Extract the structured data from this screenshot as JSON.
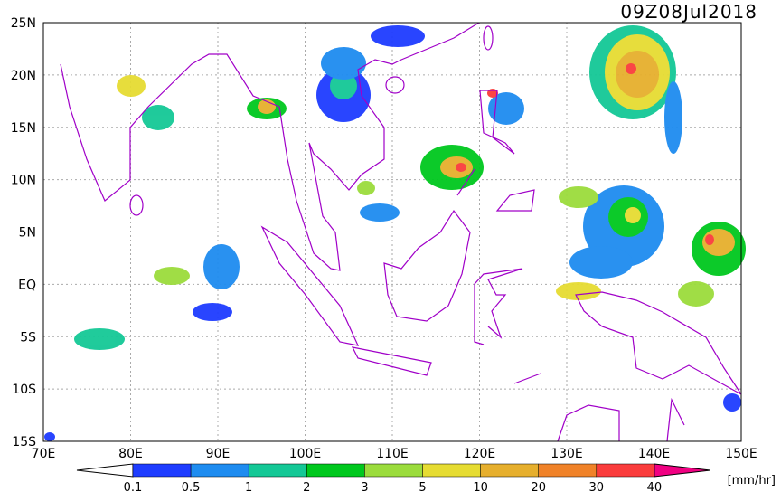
{
  "title": "09Z08Jul2018",
  "lat_labels": [
    "25N",
    "20N",
    "15N",
    "10N",
    "5N",
    "EQ",
    "5S",
    "10S",
    "15S"
  ],
  "lon_labels": [
    "70E",
    "80E",
    "90E",
    "100E",
    "110E",
    "120E",
    "130E",
    "140E",
    "150E"
  ],
  "colorbar": {
    "levels": [
      "0.1",
      "0.5",
      "1",
      "2",
      "3",
      "5",
      "10",
      "20",
      "30",
      "40"
    ],
    "below_color": "#ffffff",
    "colors": [
      "#1e3cff",
      "#1e8cf0",
      "#14c896",
      "#00c81e",
      "#9bdc3c",
      "#e6dc32",
      "#e6af2d",
      "#f08228",
      "#fa3c3c"
    ],
    "above_color": "#f00082",
    "unit": "[mm/hr]"
  },
  "coast_color": "#a000c8"
}
